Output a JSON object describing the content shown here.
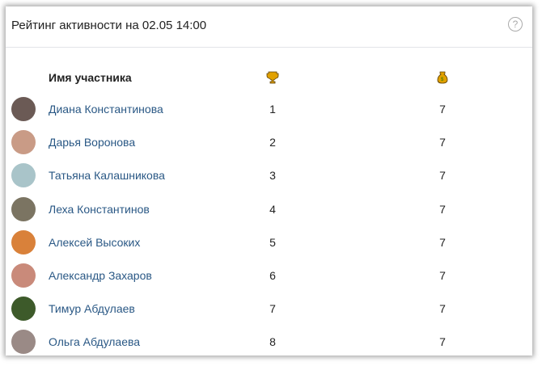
{
  "header": {
    "title": "Рейтинг активности на 02.05 14:00",
    "help_icon": "question-circle-icon"
  },
  "table": {
    "name_header": "Имя участника",
    "col1_icon": "trophy-icon",
    "col2_icon": "money-bag-icon",
    "rows": [
      {
        "name": "Диана Константинова",
        "rank": "1",
        "score": "7",
        "avatar_color": "#6b5a55"
      },
      {
        "name": "Дарья Воронова",
        "rank": "2",
        "score": "7",
        "avatar_color": "#c99b86"
      },
      {
        "name": "Татьяна Калашникова",
        "rank": "3",
        "score": "7",
        "avatar_color": "#a9c4c9"
      },
      {
        "name": "Леха Константинов",
        "rank": "4",
        "score": "7",
        "avatar_color": "#7b7462"
      },
      {
        "name": "Алексей Высоких",
        "rank": "5",
        "score": "7",
        "avatar_color": "#d9813a"
      },
      {
        "name": "Александр Захаров",
        "rank": "6",
        "score": "7",
        "avatar_color": "#c98a7a"
      },
      {
        "name": "Тимур Абдулаев",
        "rank": "7",
        "score": "7",
        "avatar_color": "#3d5a2a"
      },
      {
        "name": "Ольга Абдулаева",
        "rank": "8",
        "score": "7",
        "avatar_color": "#9a8a86"
      }
    ]
  }
}
